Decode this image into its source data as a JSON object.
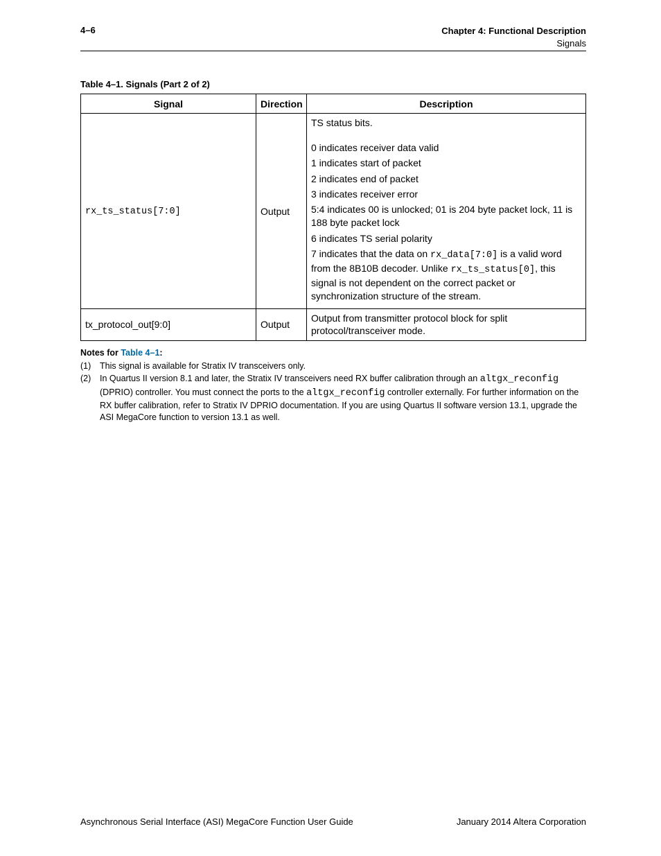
{
  "header": {
    "page_number": "4–6",
    "chapter": "Chapter 4:  Functional Description",
    "section": "Signals"
  },
  "table": {
    "caption_bold": "Table 4–1.  Signals   (Part 2 of 2)",
    "columns": [
      "Signal",
      "Direction",
      "Description"
    ],
    "rows": [
      {
        "signal": "rx_ts_status[7:0]",
        "direction": "Output",
        "desc": {
          "intro": "TS status bits.",
          "lines": [
            "0 indicates receiver data valid",
            "1 indicates start of packet",
            "2 indicates end of packet",
            "3 indicates receiver error",
            "5:4 indicates 00 is unlocked; 01 is 204 byte packet lock, 11 is 188 byte packet lock",
            "6 indicates TS serial polarity"
          ],
          "last_pre": "7 indicates that the data on ",
          "last_code1": "rx_data[7:0]",
          "last_mid": " is a valid word from the 8B10B decoder. Unlike ",
          "last_code2": "rx_ts_status[0]",
          "last_post": ", this signal is not dependent on the correct packet or synchronization structure of the stream."
        }
      },
      {
        "signal": "tx_protocol_out[9:0]",
        "direction": "Output",
        "desc_plain": "Output from transmitter protocol block for split protocol/transceiver mode."
      }
    ]
  },
  "notes": {
    "title_pre": "Notes for ",
    "title_link": "Table 4–1",
    "title_post": ":",
    "items": [
      {
        "num": "(1)",
        "text_plain": "This signal is available for Stratix IV transceivers only."
      },
      {
        "num": "(2)",
        "p1": "In Quartus II version 8.1 and later, the Stratix IV transceivers need RX buffer calibration through an ",
        "c1": "altgx_reconfig",
        "p2": " (DPRIO) controller. You must connect the ports to the ",
        "c2": "altgx_reconfig",
        "p3": " controller externally. For further information on the RX buffer calibration, refer to Stratix IV DPRIO documentation. If you are using Quartus II software version 13.1, upgrade the ASI MegaCore function to version 13.1 as well."
      }
    ]
  },
  "footer": {
    "left": "Asynchronous Serial Interface (ASI) MegaCore Function User Guide",
    "right": "January 2014    Altera Corporation"
  }
}
